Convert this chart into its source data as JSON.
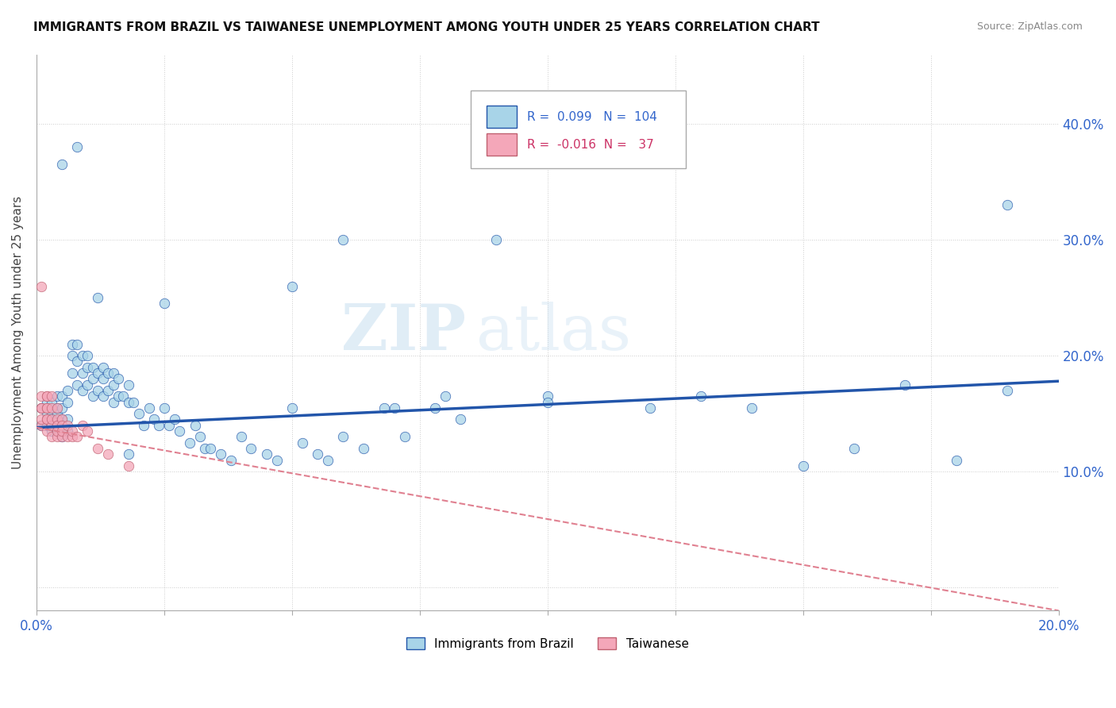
{
  "title": "IMMIGRANTS FROM BRAZIL VS TAIWANESE UNEMPLOYMENT AMONG YOUTH UNDER 25 YEARS CORRELATION CHART",
  "source": "Source: ZipAtlas.com",
  "ylabel": "Unemployment Among Youth under 25 years",
  "xlim": [
    0.0,
    0.2
  ],
  "ylim": [
    -0.02,
    0.46
  ],
  "xticks": [
    0.0,
    0.025,
    0.05,
    0.075,
    0.1,
    0.125,
    0.15,
    0.175,
    0.2
  ],
  "xtick_labels": [
    "0.0%",
    "",
    "",
    "",
    "",
    "",
    "",
    "",
    "20.0%"
  ],
  "yticks": [
    0.0,
    0.1,
    0.2,
    0.3,
    0.4
  ],
  "ytick_labels": [
    "",
    "10.0%",
    "20.0%",
    "30.0%",
    "40.0%"
  ],
  "legend_brazil_R": "0.099",
  "legend_brazil_N": "104",
  "legend_taiwan_R": "-0.016",
  "legend_taiwan_N": "37",
  "color_brazil": "#a8d4e8",
  "color_taiwan": "#f4a7b9",
  "color_trend_brazil": "#2255aa",
  "color_trend_taiwan": "#e08090",
  "watermark": "ZIPatlas",
  "brazil_trend_x0": 0.0,
  "brazil_trend_y0": 0.138,
  "brazil_trend_x1": 0.2,
  "brazil_trend_y1": 0.178,
  "taiwan_trend_x0": 0.0,
  "taiwan_trend_y0": 0.138,
  "taiwan_trend_x1": 0.2,
  "taiwan_trend_y1": -0.02,
  "brazil_x": [
    0.001,
    0.001,
    0.002,
    0.002,
    0.002,
    0.003,
    0.003,
    0.003,
    0.003,
    0.004,
    0.004,
    0.004,
    0.004,
    0.004,
    0.005,
    0.005,
    0.005,
    0.005,
    0.006,
    0.006,
    0.006,
    0.006,
    0.007,
    0.007,
    0.007,
    0.008,
    0.008,
    0.008,
    0.009,
    0.009,
    0.009,
    0.01,
    0.01,
    0.01,
    0.011,
    0.011,
    0.011,
    0.012,
    0.012,
    0.013,
    0.013,
    0.013,
    0.014,
    0.014,
    0.015,
    0.015,
    0.015,
    0.016,
    0.016,
    0.017,
    0.018,
    0.018,
    0.019,
    0.02,
    0.021,
    0.022,
    0.023,
    0.024,
    0.025,
    0.025,
    0.026,
    0.027,
    0.028,
    0.03,
    0.031,
    0.032,
    0.033,
    0.034,
    0.036,
    0.038,
    0.04,
    0.042,
    0.045,
    0.047,
    0.05,
    0.052,
    0.055,
    0.057,
    0.06,
    0.064,
    0.068,
    0.072,
    0.078,
    0.083,
    0.05,
    0.06,
    0.07,
    0.08,
    0.09,
    0.1,
    0.1,
    0.12,
    0.13,
    0.14,
    0.15,
    0.16,
    0.17,
    0.18,
    0.19,
    0.19,
    0.005,
    0.008,
    0.012,
    0.018
  ],
  "brazil_y": [
    0.14,
    0.155,
    0.14,
    0.15,
    0.16,
    0.135,
    0.15,
    0.16,
    0.145,
    0.135,
    0.15,
    0.155,
    0.165,
    0.14,
    0.13,
    0.145,
    0.155,
    0.165,
    0.135,
    0.145,
    0.16,
    0.17,
    0.185,
    0.2,
    0.21,
    0.175,
    0.195,
    0.21,
    0.17,
    0.185,
    0.2,
    0.175,
    0.19,
    0.2,
    0.165,
    0.18,
    0.19,
    0.17,
    0.185,
    0.165,
    0.18,
    0.19,
    0.17,
    0.185,
    0.16,
    0.175,
    0.185,
    0.165,
    0.18,
    0.165,
    0.16,
    0.175,
    0.16,
    0.15,
    0.14,
    0.155,
    0.145,
    0.14,
    0.155,
    0.245,
    0.14,
    0.145,
    0.135,
    0.125,
    0.14,
    0.13,
    0.12,
    0.12,
    0.115,
    0.11,
    0.13,
    0.12,
    0.115,
    0.11,
    0.155,
    0.125,
    0.115,
    0.11,
    0.13,
    0.12,
    0.155,
    0.13,
    0.155,
    0.145,
    0.26,
    0.3,
    0.155,
    0.165,
    0.3,
    0.165,
    0.16,
    0.155,
    0.165,
    0.155,
    0.105,
    0.12,
    0.175,
    0.11,
    0.33,
    0.17,
    0.365,
    0.38,
    0.25,
    0.115
  ],
  "taiwan_x": [
    0.001,
    0.001,
    0.001,
    0.001,
    0.001,
    0.001,
    0.002,
    0.002,
    0.002,
    0.002,
    0.002,
    0.002,
    0.002,
    0.003,
    0.003,
    0.003,
    0.003,
    0.003,
    0.004,
    0.004,
    0.004,
    0.004,
    0.004,
    0.005,
    0.005,
    0.005,
    0.005,
    0.006,
    0.006,
    0.007,
    0.007,
    0.008,
    0.009,
    0.01,
    0.012,
    0.014,
    0.018
  ],
  "taiwan_y": [
    0.26,
    0.155,
    0.165,
    0.14,
    0.155,
    0.145,
    0.145,
    0.155,
    0.165,
    0.135,
    0.145,
    0.155,
    0.165,
    0.14,
    0.155,
    0.145,
    0.165,
    0.13,
    0.145,
    0.155,
    0.14,
    0.13,
    0.135,
    0.145,
    0.13,
    0.14,
    0.135,
    0.13,
    0.14,
    0.13,
    0.135,
    0.13,
    0.14,
    0.135,
    0.12,
    0.115,
    0.105
  ]
}
